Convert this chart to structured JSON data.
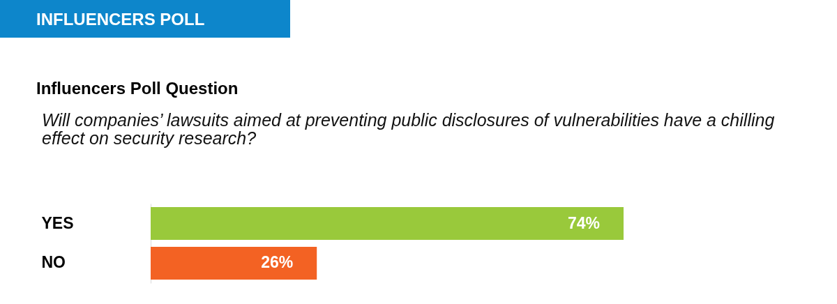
{
  "chart_data": {
    "type": "bar",
    "title": "INFLUENCERS POLL",
    "subtitle": "Influencers Poll Question",
    "annotations": [
      "Will companies’ lawsuits aimed at preventing public disclosures of vulnerabilities have a chilling effect on security research?"
    ],
    "orientation": "horizontal",
    "categories": [
      "YES",
      "NO"
    ],
    "values": [
      74,
      26
    ],
    "colors": [
      "#99c93b",
      "#f36223"
    ],
    "value_labels": [
      "74%",
      "26%"
    ]
  }
}
